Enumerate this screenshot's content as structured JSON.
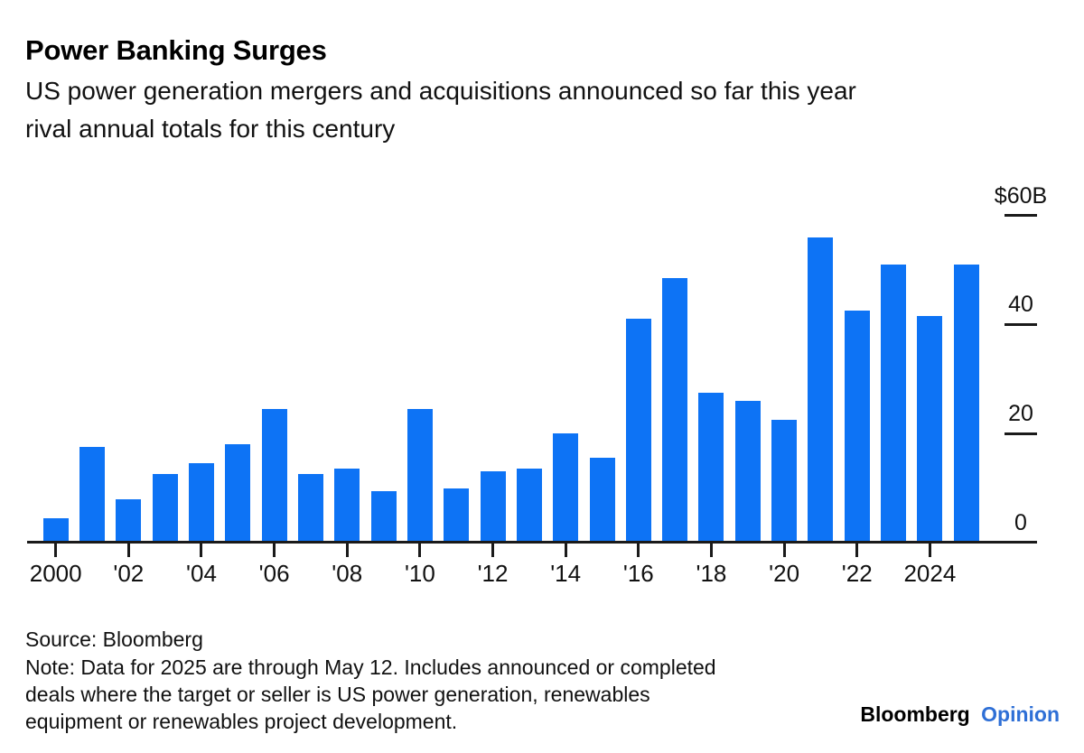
{
  "header": {
    "title": "Power Banking Surges",
    "subtitle_lines": [
      "US power generation mergers and acquisitions announced so far this year",
      "rival annual totals for this century"
    ]
  },
  "chart_data": {
    "type": "bar",
    "title": "Power Banking Surges",
    "subtitle": "US power generation mergers and acquisitions announced so far this year rival annual totals for this century",
    "unit": "billions of US dollars",
    "categories": [
      2000,
      2001,
      2002,
      2003,
      2004,
      2005,
      2006,
      2007,
      2008,
      2009,
      2010,
      2011,
      2012,
      2013,
      2014,
      2015,
      2016,
      2017,
      2018,
      2019,
      2020,
      2021,
      2022,
      2023,
      2024,
      2025
    ],
    "values": [
      4.5,
      17.5,
      8,
      12.5,
      14.5,
      18,
      24.5,
      12.5,
      13.5,
      9.5,
      24.5,
      10,
      13,
      13.5,
      20,
      15.5,
      41,
      48.5,
      27.5,
      26,
      22.5,
      56,
      42.5,
      51,
      41.5,
      51
    ],
    "ylim": [
      0,
      60
    ],
    "yticks": [
      {
        "value": 60,
        "label": "$60B"
      },
      {
        "value": 40,
        "label": "40"
      },
      {
        "value": 20,
        "label": "20"
      },
      {
        "value": 0,
        "label": "0"
      }
    ],
    "xticks": [
      {
        "index": 0,
        "label": "2000"
      },
      {
        "index": 2,
        "label": "'02"
      },
      {
        "index": 4,
        "label": "'04"
      },
      {
        "index": 6,
        "label": "'06"
      },
      {
        "index": 8,
        "label": "'08"
      },
      {
        "index": 10,
        "label": "'10"
      },
      {
        "index": 12,
        "label": "'12"
      },
      {
        "index": 14,
        "label": "'14"
      },
      {
        "index": 16,
        "label": "'16"
      },
      {
        "index": 18,
        "label": "'18"
      },
      {
        "index": 20,
        "label": "'20"
      },
      {
        "index": 22,
        "label": "'22"
      },
      {
        "index": 24,
        "label": "2024"
      }
    ],
    "bar_color": "#0d73f5",
    "axis_color": "#1a1a1a",
    "grid": false,
    "legend_position": "none",
    "ytick_side": "right"
  },
  "footer": {
    "source": "Source: Bloomberg",
    "note_lines": [
      "Note: Data for 2025 are through May 12. Includes announced or completed",
      "deals where the target or seller is US power generation, renewables",
      "equipment or renewables project development."
    ],
    "logo": {
      "brand": "Bloomberg",
      "product": "Opinion",
      "product_color": "#2e6fd6"
    }
  }
}
